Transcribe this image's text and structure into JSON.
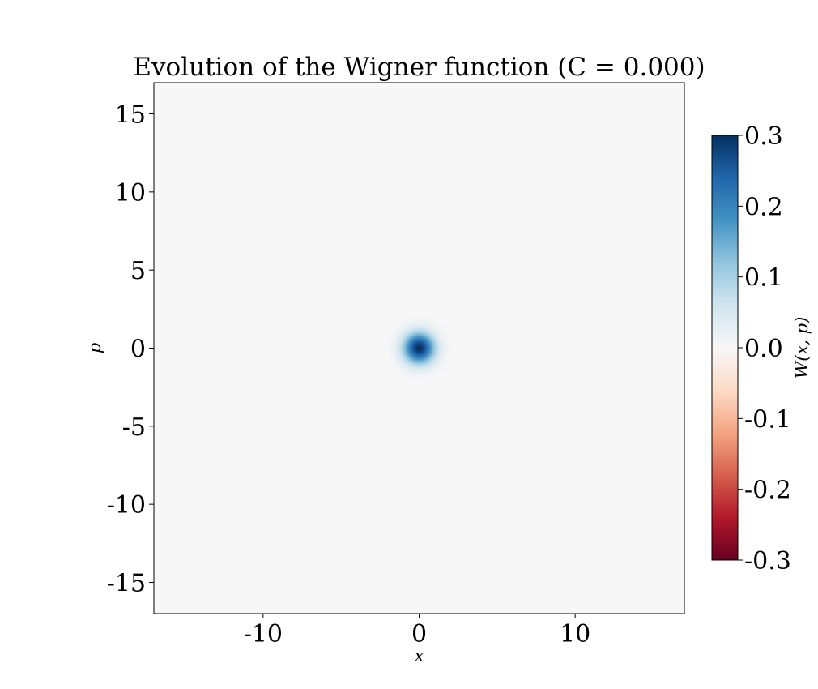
{
  "chart_data": {
    "type": "heatmap",
    "title": "Evolution of the Wigner function (C = 0.000)",
    "xlabel": "x",
    "ylabel": "p",
    "xlim": [
      -17,
      17
    ],
    "ylim": [
      -17,
      17
    ],
    "x_ticks": [
      {
        "value": -10,
        "label": "-10"
      },
      {
        "value": 0,
        "label": "0"
      },
      {
        "value": 10,
        "label": "10"
      }
    ],
    "y_ticks": [
      {
        "value": 15,
        "label": "15"
      },
      {
        "value": 10,
        "label": "10"
      },
      {
        "value": 5,
        "label": "5"
      },
      {
        "value": 0,
        "label": "0"
      },
      {
        "value": -5,
        "label": "-5"
      },
      {
        "value": -10,
        "label": "-10"
      },
      {
        "value": -15,
        "label": "-15"
      }
    ],
    "background_value": 0.0,
    "peak": {
      "x": 0,
      "p": 0,
      "value": 0.3,
      "sigma": 0.7
    },
    "colorbar": {
      "label": "W(x, p)",
      "colormap": "RdBu",
      "range": [
        -0.3,
        0.3
      ],
      "ticks": [
        {
          "value": 0.3,
          "label": "0.3"
        },
        {
          "value": 0.2,
          "label": "0.2"
        },
        {
          "value": 0.1,
          "label": "0.1"
        },
        {
          "value": 0.0,
          "label": "0.0"
        },
        {
          "value": -0.1,
          "label": "-0.1"
        },
        {
          "value": -0.2,
          "label": "-0.2"
        },
        {
          "value": -0.3,
          "label": "-0.3"
        }
      ],
      "colors": [
        "#67001f",
        "#b2182b",
        "#d6604d",
        "#f4a582",
        "#fddbc7",
        "#f7f7f7",
        "#d1e5f0",
        "#92c5de",
        "#4393c3",
        "#2166ac",
        "#053061"
      ]
    },
    "grid": false,
    "legend": "none"
  }
}
